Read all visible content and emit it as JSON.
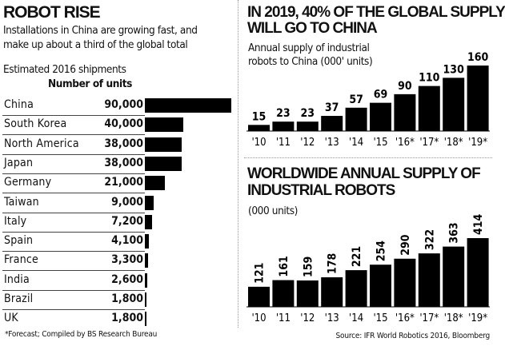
{
  "left": {
    "title": "ROBOT RISE",
    "subtitle_line1": "Installations in China are growing fast, and",
    "subtitle_line2": "make up about a third of the global total",
    "section_label": "Estimated 2016 shipments",
    "column_header": "Number of units",
    "footnote": "*Forecast; Compiled by BS Research Bureau"
  },
  "right": {
    "source": "Source: IFR World Robotics 2016, Bloomberg"
  },
  "chart_data": [
    {
      "type": "bar",
      "orientation": "horizontal",
      "title": "Estimated 2016 shipments",
      "value_label": "Number of units",
      "categories": [
        "China",
        "South Korea",
        "North America",
        "Japan",
        "Germany",
        "Taiwan",
        "Italy",
        "Spain",
        "France",
        "India",
        "Brazil",
        "UK"
      ],
      "values": [
        90000,
        40000,
        38000,
        38000,
        21000,
        9000,
        7200,
        4100,
        3300,
        2600,
        1800,
        1800
      ],
      "value_labels": [
        "90,000",
        "40,000",
        "38,000",
        "38,000",
        "21,000",
        "9,000",
        "7,200",
        "4,100",
        "3,300",
        "2,600",
        "1,800",
        "1,800"
      ],
      "bar_color": "#000000"
    },
    {
      "type": "bar",
      "title_line1": "IN 2019, 40% OF THE GLOBAL SUPPLY",
      "title_line2": "WILL GO TO CHINA",
      "subtitle_line1": "Annual supply of industrial",
      "subtitle_line2": "robots to China (000' units)",
      "categories": [
        "'10",
        "'11",
        "'12",
        "'13",
        "'14",
        "'15",
        "'16*",
        "'17*",
        "'18*",
        "'19*"
      ],
      "values": [
        15,
        23,
        23,
        37,
        57,
        69,
        90,
        110,
        130,
        160
      ],
      "data_label_rotation": "horizontal",
      "bar_color": "#000000"
    },
    {
      "type": "bar",
      "title_line1": "WORLDWIDE ANNUAL SUPPLY OF",
      "title_line2": "INDUSTRIAL ROBOTS",
      "subtitle_line1": "(000 units)",
      "categories": [
        "'10",
        "'11",
        "'12",
        "'13",
        "'14",
        "'15",
        "'16*",
        "'17*",
        "'18*",
        "'19*"
      ],
      "values": [
        121,
        161,
        159,
        178,
        221,
        254,
        290,
        322,
        363,
        414
      ],
      "data_label_rotation": "vertical",
      "bar_color": "#000000"
    }
  ]
}
